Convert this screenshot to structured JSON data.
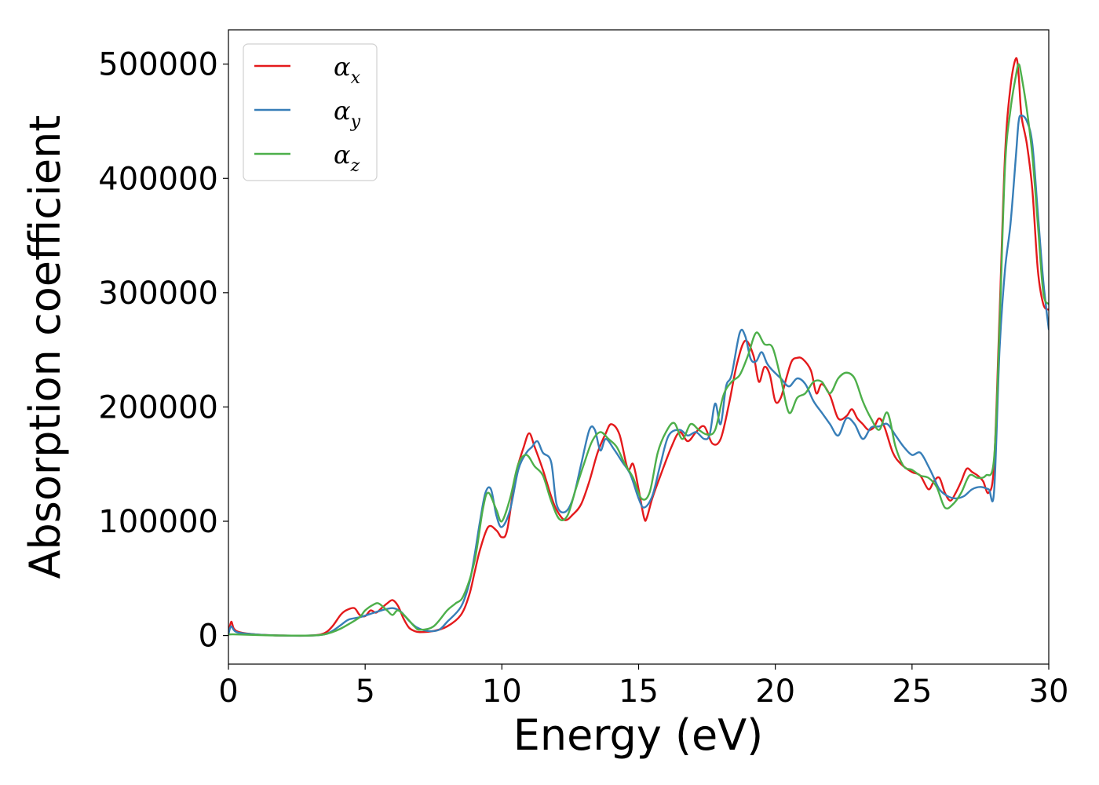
{
  "chart_data": {
    "type": "line",
    "xlabel": "Energy (eV)",
    "ylabel": "Absorption coefficient",
    "xlim": [
      0,
      30
    ],
    "ylim": [
      -25000,
      530000
    ],
    "xticks": [
      0,
      5,
      10,
      15,
      20,
      25,
      30
    ],
    "xtick_labels": [
      "0",
      "5",
      "10",
      "15",
      "20",
      "25",
      "30"
    ],
    "yticks": [
      0,
      100000,
      200000,
      300000,
      400000,
      500000
    ],
    "ytick_labels": [
      "0",
      "100000",
      "200000",
      "300000",
      "400000",
      "500000"
    ],
    "grid": false,
    "legend_position": "top-left",
    "series": [
      {
        "name": "α",
        "subscript": "x",
        "color": "#e41a1c",
        "x": [
          0,
          0.1,
          0.2,
          0.4,
          1,
          2,
          3,
          3.5,
          3.8,
          4.1,
          4.3,
          4.6,
          4.8,
          5.0,
          5.2,
          5.4,
          5.6,
          5.8,
          6.0,
          6.2,
          6.4,
          6.6,
          6.8,
          7.0,
          7.5,
          8.0,
          8.5,
          8.8,
          9.0,
          9.2,
          9.5,
          9.8,
          10.0,
          10.2,
          10.5,
          10.8,
          11.0,
          11.2,
          11.5,
          11.8,
          12.0,
          12.3,
          12.6,
          12.9,
          13.2,
          13.5,
          13.8,
          14.0,
          14.3,
          14.6,
          14.8,
          15.0,
          15.2,
          15.3,
          15.5,
          15.8,
          16.2,
          16.5,
          16.8,
          17.1,
          17.4,
          17.7,
          18.0,
          18.3,
          18.6,
          18.9,
          19.2,
          19.4,
          19.6,
          19.8,
          20.0,
          20.2,
          20.4,
          20.6,
          20.8,
          21.0,
          21.3,
          21.5,
          21.7,
          22.0,
          22.3,
          22.6,
          22.8,
          23.0,
          23.2,
          23.4,
          23.6,
          23.8,
          24.0,
          24.3,
          24.6,
          25.0,
          25.3,
          25.6,
          25.8,
          26.0,
          26.2,
          26.4,
          26.6,
          26.8,
          27.0,
          27.2,
          27.4,
          27.6,
          27.8,
          28.0,
          28.2,
          28.4,
          28.6,
          28.8,
          28.9,
          29.0,
          29.2,
          29.4,
          29.6,
          29.8,
          30.0
        ],
        "y": [
          2000,
          12000,
          6000,
          3000,
          1000,
          0,
          0,
          2000,
          8000,
          18000,
          22000,
          24000,
          18000,
          17000,
          22000,
          20000,
          24000,
          28000,
          31000,
          26000,
          15000,
          7000,
          4000,
          3000,
          4000,
          8000,
          18000,
          35000,
          55000,
          75000,
          95000,
          92000,
          86000,
          93000,
          140000,
          165000,
          177000,
          165000,
          145000,
          122000,
          110000,
          101000,
          106000,
          115000,
          135000,
          160000,
          177000,
          185000,
          176000,
          146000,
          150000,
          128000,
          103000,
          103000,
          120000,
          140000,
          165000,
          178000,
          170000,
          178000,
          183000,
          168000,
          172000,
          202000,
          238000,
          258000,
          245000,
          222000,
          235000,
          228000,
          205000,
          208000,
          225000,
          240000,
          243000,
          242000,
          232000,
          212000,
          220000,
          210000,
          190000,
          192000,
          198000,
          190000,
          185000,
          180000,
          182000,
          190000,
          182000,
          160000,
          150000,
          143000,
          140000,
          128000,
          135000,
          138000,
          125000,
          118000,
          125000,
          135000,
          146000,
          143000,
          140000,
          135000,
          125000,
          150000,
          280000,
          420000,
          480000,
          505000,
          490000,
          455000,
          430000,
          390000,
          320000,
          290000,
          285000
        ]
      },
      {
        "name": "α",
        "subscript": "y",
        "color": "#377eb8",
        "x": [
          0,
          0.1,
          0.3,
          1,
          2,
          3,
          3.5,
          3.8,
          4.1,
          4.4,
          4.8,
          5.2,
          5.6,
          6.0,
          6.3,
          6.6,
          6.9,
          7.3,
          7.7,
          8.0,
          8.5,
          8.8,
          9.0,
          9.2,
          9.4,
          9.6,
          9.8,
          10.0,
          10.3,
          10.6,
          10.9,
          11.1,
          11.3,
          11.5,
          11.8,
          12.0,
          12.3,
          12.6,
          12.9,
          13.2,
          13.4,
          13.6,
          13.8,
          14.1,
          14.4,
          14.7,
          15.0,
          15.2,
          15.5,
          15.8,
          16.1,
          16.5,
          16.8,
          17.1,
          17.4,
          17.6,
          17.8,
          18.0,
          18.2,
          18.4,
          18.7,
          18.9,
          19.1,
          19.3,
          19.5,
          19.7,
          19.9,
          20.2,
          20.5,
          20.8,
          21.1,
          21.4,
          21.7,
          22.0,
          22.3,
          22.6,
          22.9,
          23.2,
          23.5,
          23.8,
          24.1,
          24.4,
          24.7,
          25.0,
          25.3,
          25.6,
          25.8,
          26.0,
          26.3,
          26.6,
          26.9,
          27.2,
          27.5,
          27.8,
          28.0,
          28.2,
          28.4,
          28.6,
          28.8,
          28.9,
          29.0,
          29.2,
          29.4,
          29.6,
          29.8,
          30.0
        ],
        "y": [
          1000,
          8000,
          3000,
          1000,
          0,
          0,
          1000,
          4000,
          9000,
          14000,
          16000,
          19000,
          22000,
          24000,
          21000,
          13000,
          7000,
          4000,
          5000,
          12000,
          25000,
          45000,
          70000,
          100000,
          125000,
          128000,
          105000,
          95000,
          110000,
          145000,
          160000,
          165000,
          170000,
          160000,
          152000,
          115000,
          108000,
          120000,
          150000,
          180000,
          180000,
          162000,
          172000,
          163000,
          152000,
          141000,
          120000,
          112000,
          122000,
          150000,
          175000,
          180000,
          175000,
          178000,
          172000,
          176000,
          203000,
          185000,
          218000,
          228000,
          265000,
          262000,
          242000,
          240000,
          248000,
          238000,
          232000,
          225000,
          218000,
          225000,
          220000,
          205000,
          195000,
          185000,
          175000,
          190000,
          185000,
          172000,
          182000,
          183000,
          185000,
          175000,
          165000,
          158000,
          160000,
          148000,
          138000,
          128000,
          122000,
          120000,
          122000,
          128000,
          130000,
          128000,
          126000,
          250000,
          320000,
          360000,
          420000,
          450000,
          455000,
          450000,
          430000,
          370000,
          310000,
          268000
        ]
      },
      {
        "name": "α",
        "subscript": "z",
        "color": "#4daf4a",
        "x": [
          0,
          0.3,
          1,
          2,
          3,
          3.5,
          3.8,
          4.1,
          4.4,
          4.8,
          5.0,
          5.3,
          5.5,
          5.8,
          6.0,
          6.2,
          6.5,
          6.8,
          7.0,
          7.5,
          8.0,
          8.3,
          8.6,
          9.0,
          9.3,
          9.5,
          9.8,
          10.0,
          10.3,
          10.6,
          10.9,
          11.2,
          11.5,
          11.8,
          12.1,
          12.4,
          12.7,
          13.0,
          13.3,
          13.6,
          13.9,
          14.2,
          14.5,
          14.8,
          15.1,
          15.4,
          15.7,
          16.0,
          16.3,
          16.6,
          16.9,
          17.2,
          17.5,
          17.8,
          18.1,
          18.4,
          18.7,
          19.0,
          19.3,
          19.6,
          19.9,
          20.2,
          20.5,
          20.8,
          21.1,
          21.4,
          21.7,
          22.0,
          22.3,
          22.6,
          22.9,
          23.2,
          23.5,
          23.8,
          24.1,
          24.4,
          24.7,
          25.0,
          25.3,
          25.6,
          25.9,
          26.2,
          26.5,
          26.8,
          27.1,
          27.4,
          27.7,
          28.0,
          28.2,
          28.4,
          28.6,
          28.8,
          28.9,
          29.0,
          29.2,
          29.4,
          29.6,
          29.8,
          30.0
        ],
        "y": [
          1000,
          1000,
          500,
          0,
          0,
          1000,
          3000,
          6000,
          10000,
          16000,
          22000,
          27000,
          28000,
          22000,
          18000,
          22000,
          16000,
          8000,
          5000,
          8000,
          22000,
          28000,
          35000,
          65000,
          110000,
          125000,
          110000,
          100000,
          120000,
          150000,
          158000,
          148000,
          140000,
          118000,
          102000,
          105000,
          128000,
          150000,
          170000,
          178000,
          172000,
          165000,
          150000,
          138000,
          120000,
          125000,
          160000,
          178000,
          186000,
          172000,
          185000,
          180000,
          176000,
          180000,
          210000,
          222000,
          228000,
          245000,
          265000,
          255000,
          252000,
          225000,
          195000,
          208000,
          212000,
          222000,
          222000,
          212000,
          225000,
          230000,
          225000,
          205000,
          190000,
          180000,
          195000,
          165000,
          148000,
          145000,
          140000,
          138000,
          130000,
          112000,
          115000,
          125000,
          140000,
          138000,
          140000,
          155000,
          270000,
          410000,
          460000,
          490000,
          500000,
          490000,
          460000,
          420000,
          360000,
          300000,
          290000
        ]
      }
    ]
  }
}
